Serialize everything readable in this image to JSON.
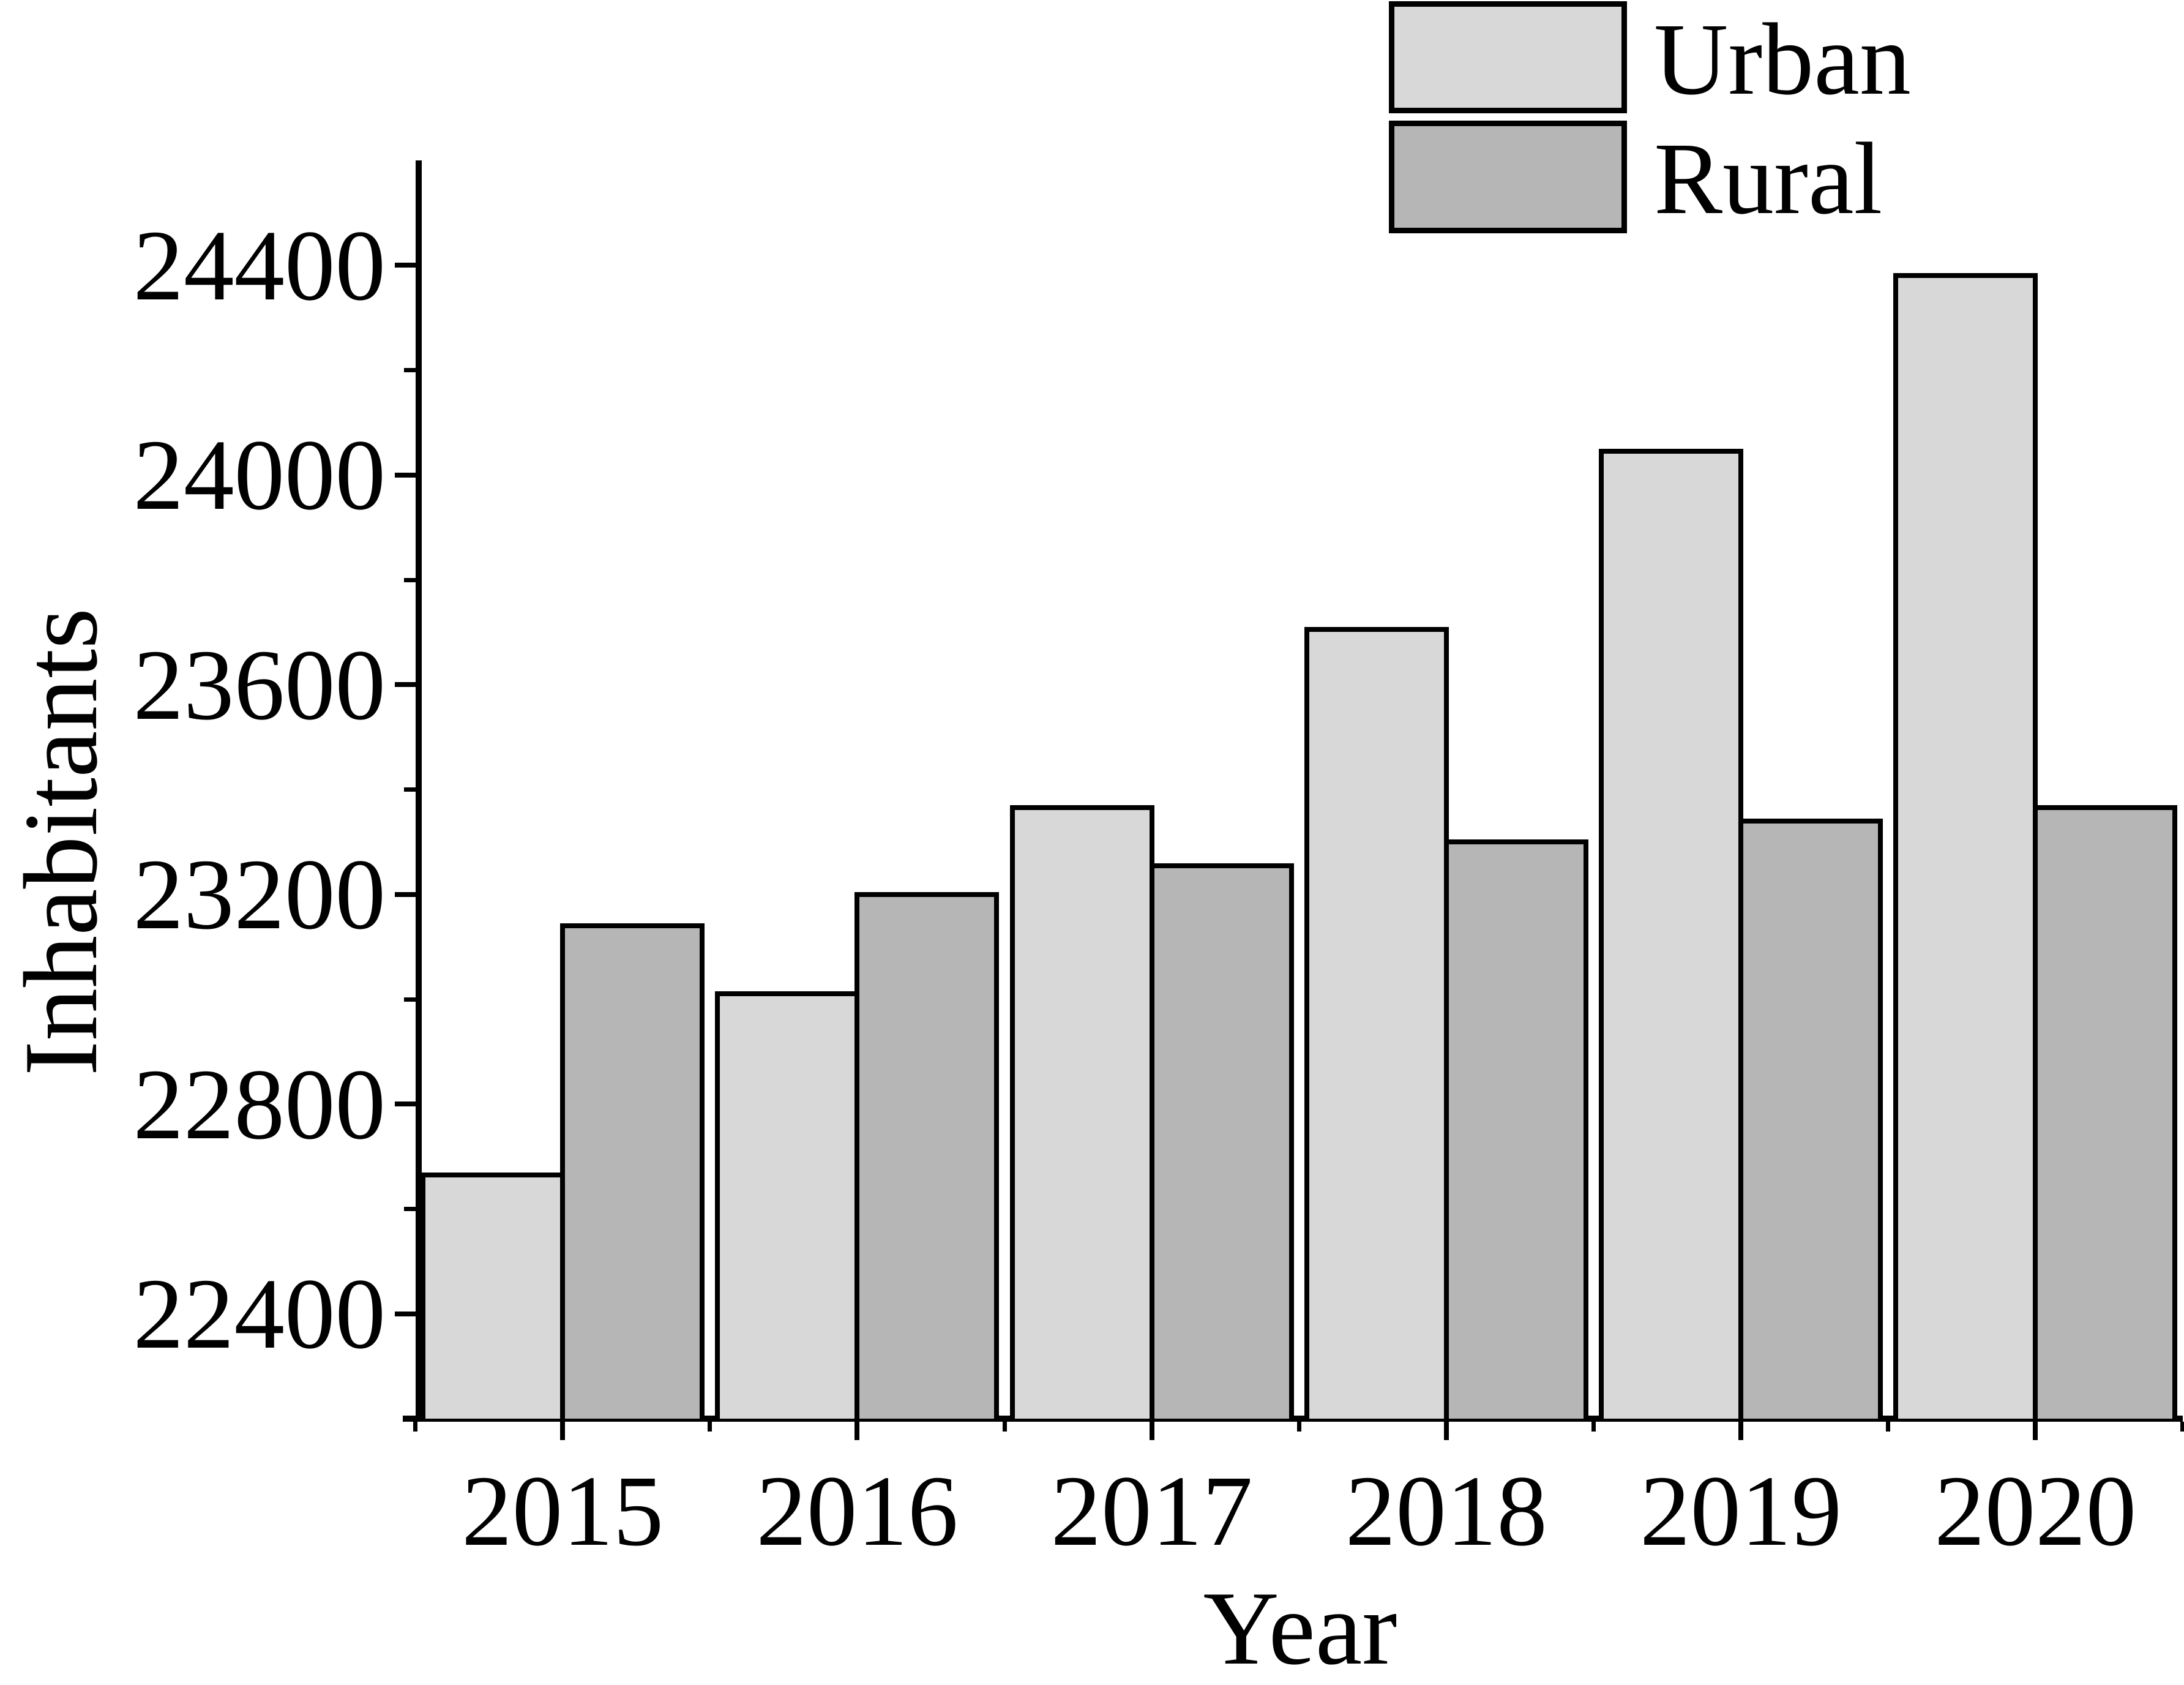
{
  "chart_data": {
    "type": "bar",
    "title": "",
    "xlabel": "Year",
    "ylabel": "Inhabitants",
    "categories": [
      "2015",
      "2016",
      "2017",
      "2018",
      "2019",
      "2020"
    ],
    "series": [
      {
        "name": "Urban",
        "color": "#d8d8d8",
        "values": [
          22665,
          23010,
          23365,
          23705,
          24045,
          24380
        ]
      },
      {
        "name": "Rural",
        "color": "#b6b6b6",
        "values": [
          23140,
          23200,
          23255,
          23300,
          23340,
          23365
        ]
      }
    ],
    "ylim": [
      22200,
      24600
    ],
    "yticks": [
      22400,
      22800,
      23200,
      23600,
      24000,
      24400
    ],
    "yticks_minor": [
      22600,
      23000,
      23400,
      23800,
      24200
    ],
    "grid": "off",
    "legend_position": "top-right",
    "bar_edge_color": "#000000",
    "axis_color": "#000000"
  }
}
